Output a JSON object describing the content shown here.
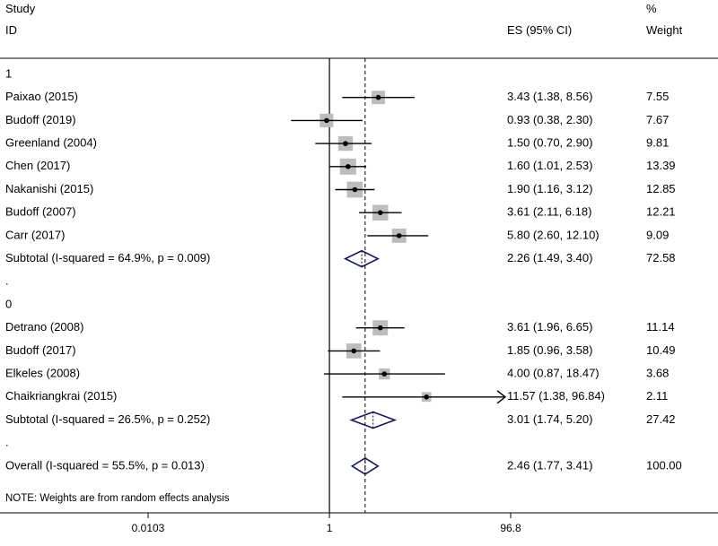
{
  "header": {
    "study_line1": "Study",
    "study_line2": "ID",
    "es_label": "ES (95% CI)",
    "weight_line1": "%",
    "weight_line2": "Weight"
  },
  "note": "NOTE: Weights are from random effects analysis",
  "colors": {
    "box": "#bdbdbd",
    "diamond": "#1a1a5e",
    "line": "#000000"
  },
  "chart_data": {
    "type": "forest",
    "scale": "log",
    "xlim": [
      0.0103,
      96.8
    ],
    "xticks": [
      {
        "value": 0.0103,
        "label": "0.0103"
      },
      {
        "value": 1,
        "label": "1"
      },
      {
        "value": 96.8,
        "label": "96.8"
      }
    ],
    "null_value": 1,
    "overall_es": 2.46,
    "rows": [
      {
        "kind": "group",
        "label": "1"
      },
      {
        "kind": "study",
        "label": "Paixao (2015)",
        "es": 3.43,
        "lo": 1.38,
        "hi": 8.56,
        "es_text": "3.43 (1.38, 8.56)",
        "weight": "7.55"
      },
      {
        "kind": "study",
        "label": "Budoff (2019)",
        "es": 0.93,
        "lo": 0.38,
        "hi": 2.3,
        "es_text": "0.93 (0.38, 2.30)",
        "weight": "7.67"
      },
      {
        "kind": "study",
        "label": "Greenland (2004)",
        "es": 1.5,
        "lo": 0.7,
        "hi": 2.9,
        "es_text": "1.50 (0.70, 2.90)",
        "weight": "9.81"
      },
      {
        "kind": "study",
        "label": "Chen (2017)",
        "es": 1.6,
        "lo": 1.01,
        "hi": 2.53,
        "es_text": "1.60 (1.01, 2.53)",
        "weight": "13.39"
      },
      {
        "kind": "study",
        "label": "Nakanishi (2015)",
        "es": 1.9,
        "lo": 1.16,
        "hi": 3.12,
        "es_text": "1.90 (1.16, 3.12)",
        "weight": "12.85"
      },
      {
        "kind": "study",
        "label": "Budoff (2007)",
        "es": 3.61,
        "lo": 2.11,
        "hi": 6.18,
        "es_text": "3.61 (2.11, 6.18)",
        "weight": "12.21"
      },
      {
        "kind": "study",
        "label": "Carr (2017)",
        "es": 5.8,
        "lo": 2.6,
        "hi": 12.1,
        "es_text": "5.80 (2.60, 12.10)",
        "weight": "9.09"
      },
      {
        "kind": "subtotal",
        "label": "Subtotal  (I-squared = 64.9%, p = 0.009)",
        "es": 2.26,
        "lo": 1.49,
        "hi": 3.4,
        "es_text": "2.26 (1.49, 3.40)",
        "weight": "72.58"
      },
      {
        "kind": "spacer",
        "label": "."
      },
      {
        "kind": "group",
        "label": "0"
      },
      {
        "kind": "study",
        "label": "Detrano (2008)",
        "es": 3.61,
        "lo": 1.96,
        "hi": 6.65,
        "es_text": "3.61 (1.96, 6.65)",
        "weight": "11.14"
      },
      {
        "kind": "study",
        "label": "Budoff (2017)",
        "es": 1.85,
        "lo": 0.96,
        "hi": 3.58,
        "es_text": "1.85 (0.96, 3.58)",
        "weight": "10.49"
      },
      {
        "kind": "study",
        "label": "Elkeles (2008)",
        "es": 4.0,
        "lo": 0.87,
        "hi": 18.47,
        "es_text": "4.00 (0.87, 18.47)",
        "weight": "3.68"
      },
      {
        "kind": "study",
        "label": "Chaikriangkrai (2015)",
        "es": 11.57,
        "lo": 1.38,
        "hi": 96.84,
        "es_text": "11.57 (1.38, 96.84)",
        "weight": "2.11"
      },
      {
        "kind": "subtotal",
        "label": "Subtotal  (I-squared = 26.5%, p = 0.252)",
        "es": 3.01,
        "lo": 1.74,
        "hi": 5.2,
        "es_text": "3.01 (1.74, 5.20)",
        "weight": "27.42"
      },
      {
        "kind": "spacer",
        "label": "."
      },
      {
        "kind": "overall",
        "label": "Overall  (I-squared = 55.5%, p = 0.013)",
        "es": 2.46,
        "lo": 1.77,
        "hi": 3.41,
        "es_text": "2.46 (1.77, 3.41)",
        "weight": "100.00"
      }
    ]
  }
}
